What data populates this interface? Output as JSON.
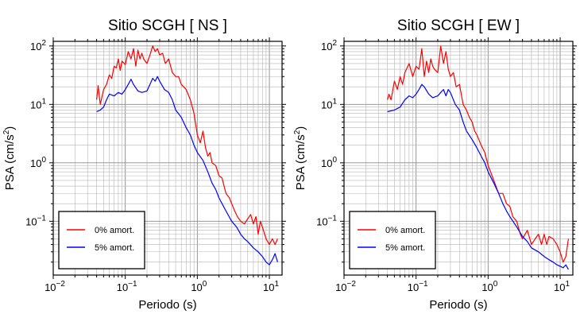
{
  "chart_data": [
    {
      "type": "line",
      "title": "Sitio SCGH [ NS ]",
      "xlabel": "Periodo (s)",
      "ylabel_main": "PSA (cm/s",
      "ylabel_sup": "2",
      "ylabel_end": ")",
      "x_scale": "log",
      "y_scale": "log",
      "xlim": [
        0.01,
        15
      ],
      "ylim": [
        0.012,
        120
      ],
      "grid": true,
      "legend_placement": "bottom-left",
      "x_ticks": [
        {
          "base": "10",
          "exp": "−2"
        },
        {
          "base": "10",
          "exp": "−1"
        },
        {
          "base": "10",
          "exp": "0"
        },
        {
          "base": "10",
          "exp": "1"
        }
      ],
      "y_ticks": [
        {
          "base": "10",
          "exp": "−1"
        },
        {
          "base": "10",
          "exp": "0"
        },
        {
          "base": "10",
          "exp": "1"
        },
        {
          "base": "10",
          "exp": "2"
        }
      ],
      "series": [
        {
          "name": "0% amort.",
          "color": "#ff0000",
          "points": [
            [
              0.04,
              12
            ],
            [
              0.042,
              21
            ],
            [
              0.045,
              10
            ],
            [
              0.05,
              18
            ],
            [
              0.055,
              22
            ],
            [
              0.06,
              32
            ],
            [
              0.065,
              28
            ],
            [
              0.07,
              45
            ],
            [
              0.075,
              42
            ],
            [
              0.08,
              60
            ],
            [
              0.085,
              38
            ],
            [
              0.09,
              55
            ],
            [
              0.1,
              48
            ],
            [
              0.11,
              80
            ],
            [
              0.12,
              60
            ],
            [
              0.13,
              90
            ],
            [
              0.14,
              45
            ],
            [
              0.15,
              85
            ],
            [
              0.16,
              60
            ],
            [
              0.17,
              75
            ],
            [
              0.18,
              60
            ],
            [
              0.2,
              50
            ],
            [
              0.22,
              70
            ],
            [
              0.24,
              100
            ],
            [
              0.26,
              80
            ],
            [
              0.28,
              90
            ],
            [
              0.3,
              70
            ],
            [
              0.33,
              75
            ],
            [
              0.36,
              50
            ],
            [
              0.4,
              60
            ],
            [
              0.45,
              35
            ],
            [
              0.5,
              30
            ],
            [
              0.55,
              30
            ],
            [
              0.6,
              22
            ],
            [
              0.7,
              18
            ],
            [
              0.8,
              12
            ],
            [
              0.9,
              7
            ],
            [
              1.0,
              3
            ],
            [
              1.1,
              2.2
            ],
            [
              1.2,
              3.5
            ],
            [
              1.3,
              1.8
            ],
            [
              1.4,
              1.3
            ],
            [
              1.5,
              1.5
            ],
            [
              1.6,
              1.0
            ],
            [
              1.8,
              0.9
            ],
            [
              2.0,
              0.6
            ],
            [
              2.2,
              0.55
            ],
            [
              2.5,
              0.3
            ],
            [
              2.8,
              0.25
            ],
            [
              3.0,
              0.2
            ],
            [
              3.3,
              0.15
            ],
            [
              3.6,
              0.12
            ],
            [
              4.0,
              0.1
            ],
            [
              4.5,
              0.09
            ],
            [
              5.0,
              0.11
            ],
            [
              5.5,
              0.13
            ],
            [
              6.0,
              0.09
            ],
            [
              6.5,
              0.12
            ],
            [
              7.0,
              0.06
            ],
            [
              7.5,
              0.1
            ],
            [
              8.0,
              0.08
            ],
            [
              9.0,
              0.05
            ],
            [
              10,
              0.04
            ],
            [
              11,
              0.05
            ],
            [
              12,
              0.04
            ],
            [
              13,
              0.05
            ]
          ]
        },
        {
          "name": "5% amort.",
          "color": "#0000ff",
          "points": [
            [
              0.04,
              7.5
            ],
            [
              0.045,
              8
            ],
            [
              0.05,
              9
            ],
            [
              0.055,
              12
            ],
            [
              0.06,
              15
            ],
            [
              0.07,
              14
            ],
            [
              0.08,
              16
            ],
            [
              0.09,
              15
            ],
            [
              0.1,
              18
            ],
            [
              0.11,
              22
            ],
            [
              0.12,
              27
            ],
            [
              0.13,
              22
            ],
            [
              0.15,
              17
            ],
            [
              0.17,
              16
            ],
            [
              0.2,
              17
            ],
            [
              0.22,
              22
            ],
            [
              0.24,
              28
            ],
            [
              0.26,
              25
            ],
            [
              0.28,
              30
            ],
            [
              0.3,
              25
            ],
            [
              0.35,
              18
            ],
            [
              0.4,
              16
            ],
            [
              0.45,
              12
            ],
            [
              0.5,
              8
            ],
            [
              0.6,
              6
            ],
            [
              0.7,
              4
            ],
            [
              0.8,
              3
            ],
            [
              0.9,
              2
            ],
            [
              1.0,
              1.5
            ],
            [
              1.2,
              1.1
            ],
            [
              1.4,
              0.7
            ],
            [
              1.6,
              0.45
            ],
            [
              1.8,
              0.35
            ],
            [
              2.0,
              0.25
            ],
            [
              2.5,
              0.15
            ],
            [
              3.0,
              0.1
            ],
            [
              3.5,
              0.08
            ],
            [
              4.0,
              0.06
            ],
            [
              4.5,
              0.05
            ],
            [
              5.0,
              0.045
            ],
            [
              6.0,
              0.035
            ],
            [
              7.0,
              0.03
            ],
            [
              8.0,
              0.025
            ],
            [
              9.0,
              0.02
            ],
            [
              10,
              0.018
            ],
            [
              11,
              0.022
            ],
            [
              12,
              0.028
            ],
            [
              13,
              0.02
            ]
          ]
        }
      ]
    },
    {
      "type": "line",
      "title": "Sitio SCGH [ EW ]",
      "xlabel": "Periodo (s)",
      "ylabel_main": "PSA (cm/s",
      "ylabel_sup": "2",
      "ylabel_end": ")",
      "x_scale": "log",
      "y_scale": "log",
      "xlim": [
        0.01,
        15
      ],
      "ylim": [
        0.012,
        120
      ],
      "grid": true,
      "legend_placement": "bottom-left",
      "x_ticks": [
        {
          "base": "10",
          "exp": "−2"
        },
        {
          "base": "10",
          "exp": "−1"
        },
        {
          "base": "10",
          "exp": "0"
        },
        {
          "base": "10",
          "exp": "1"
        }
      ],
      "y_ticks": [
        {
          "base": "10",
          "exp": "−1"
        },
        {
          "base": "10",
          "exp": "0"
        },
        {
          "base": "10",
          "exp": "1"
        },
        {
          "base": "10",
          "exp": "2"
        }
      ],
      "series": [
        {
          "name": "0% amort.",
          "color": "#ff0000",
          "points": [
            [
              0.04,
              12
            ],
            [
              0.042,
              15
            ],
            [
              0.045,
              12
            ],
            [
              0.05,
              25
            ],
            [
              0.055,
              18
            ],
            [
              0.06,
              30
            ],
            [
              0.065,
              22
            ],
            [
              0.07,
              35
            ],
            [
              0.08,
              50
            ],
            [
              0.09,
              30
            ],
            [
              0.1,
              45
            ],
            [
              0.11,
              40
            ],
            [
              0.12,
              90
            ],
            [
              0.13,
              30
            ],
            [
              0.14,
              55
            ],
            [
              0.15,
              35
            ],
            [
              0.16,
              60
            ],
            [
              0.17,
              45
            ],
            [
              0.18,
              40
            ],
            [
              0.2,
              35
            ],
            [
              0.22,
              100
            ],
            [
              0.24,
              50
            ],
            [
              0.26,
              80
            ],
            [
              0.28,
              40
            ],
            [
              0.3,
              30
            ],
            [
              0.33,
              35
            ],
            [
              0.36,
              20
            ],
            [
              0.4,
              22
            ],
            [
              0.45,
              10
            ],
            [
              0.5,
              8
            ],
            [
              0.55,
              6
            ],
            [
              0.6,
              5
            ],
            [
              0.65,
              3.5
            ],
            [
              0.7,
              3
            ],
            [
              0.8,
              2
            ],
            [
              0.9,
              1.5
            ],
            [
              1.0,
              0.9
            ],
            [
              1.2,
              0.5
            ],
            [
              1.4,
              0.3
            ],
            [
              1.6,
              0.3
            ],
            [
              1.8,
              0.2
            ],
            [
              2.0,
              0.18
            ],
            [
              2.2,
              0.12
            ],
            [
              2.5,
              0.1
            ],
            [
              2.8,
              0.06
            ],
            [
              3.0,
              0.05
            ],
            [
              3.5,
              0.07
            ],
            [
              4.0,
              0.04
            ],
            [
              4.5,
              0.05
            ],
            [
              5.0,
              0.06
            ],
            [
              5.5,
              0.04
            ],
            [
              6.0,
              0.06
            ],
            [
              6.5,
              0.04
            ],
            [
              7.0,
              0.055
            ],
            [
              8.0,
              0.05
            ],
            [
              9.0,
              0.04
            ],
            [
              10,
              0.03
            ],
            [
              11,
              0.02
            ],
            [
              12,
              0.025
            ],
            [
              13,
              0.05
            ]
          ]
        },
        {
          "name": "5% amort.",
          "color": "#0000ff",
          "points": [
            [
              0.04,
              7.5
            ],
            [
              0.05,
              8
            ],
            [
              0.06,
              9
            ],
            [
              0.07,
              12
            ],
            [
              0.08,
              14
            ],
            [
              0.09,
              13
            ],
            [
              0.1,
              15
            ],
            [
              0.11,
              18
            ],
            [
              0.12,
              22
            ],
            [
              0.13,
              20
            ],
            [
              0.15,
              15
            ],
            [
              0.17,
              13
            ],
            [
              0.2,
              14
            ],
            [
              0.22,
              16
            ],
            [
              0.24,
              18
            ],
            [
              0.26,
              14
            ],
            [
              0.28,
              18
            ],
            [
              0.3,
              16
            ],
            [
              0.35,
              10
            ],
            [
              0.4,
              8
            ],
            [
              0.45,
              5
            ],
            [
              0.5,
              3.5
            ],
            [
              0.6,
              2.5
            ],
            [
              0.7,
              1.8
            ],
            [
              0.8,
              1.3
            ],
            [
              0.9,
              1.0
            ],
            [
              1.0,
              0.7
            ],
            [
              1.2,
              0.45
            ],
            [
              1.4,
              0.3
            ],
            [
              1.6,
              0.2
            ],
            [
              1.8,
              0.15
            ],
            [
              2.0,
              0.12
            ],
            [
              2.5,
              0.08
            ],
            [
              3.0,
              0.055
            ],
            [
              3.5,
              0.045
            ],
            [
              4.0,
              0.035
            ],
            [
              5.0,
              0.03
            ],
            [
              6.0,
              0.025
            ],
            [
              7.0,
              0.022
            ],
            [
              8.0,
              0.02
            ],
            [
              9.0,
              0.018
            ],
            [
              10,
              0.017
            ],
            [
              11,
              0.016
            ],
            [
              12,
              0.018
            ],
            [
              13,
              0.015
            ]
          ]
        }
      ]
    }
  ]
}
